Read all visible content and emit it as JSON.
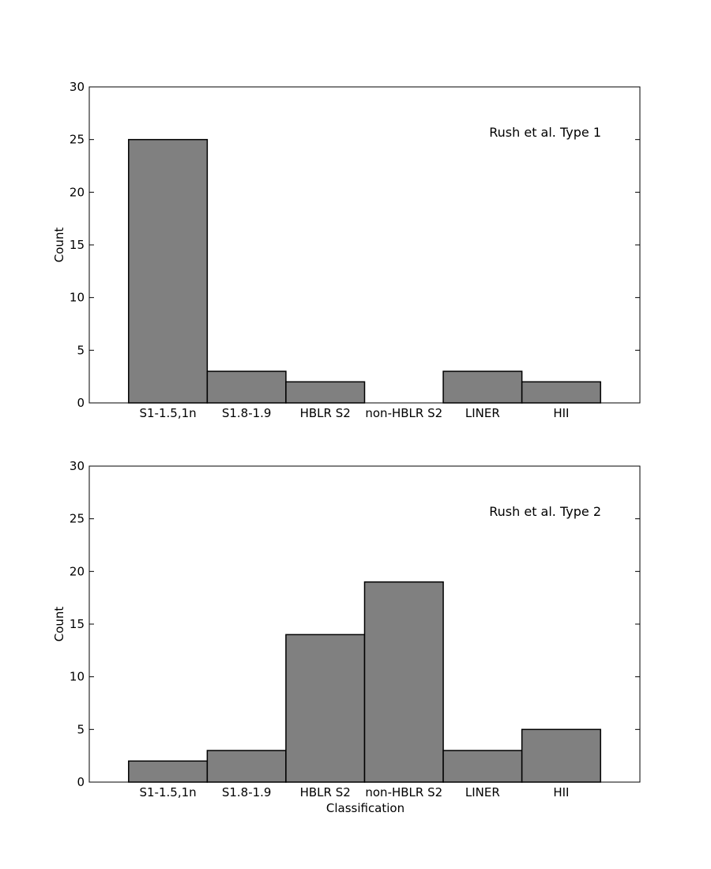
{
  "chart_data": [
    {
      "type": "bar",
      "categories": [
        "S1-1.5,1n",
        "S1.8-1.9",
        "HBLR S2",
        "non-HBLR S2",
        "LINER",
        "HII"
      ],
      "values": [
        25,
        3,
        2,
        0,
        3,
        2
      ],
      "ylabel": "Count",
      "xlabel": "",
      "ylim": [
        0,
        30
      ],
      "yticks": [
        "0",
        "5",
        "10",
        "15",
        "20",
        "25",
        "30"
      ],
      "annotation": "Rush et al. Type 1",
      "bar_color": "#808080",
      "edge_color": "#000000"
    },
    {
      "type": "bar",
      "categories": [
        "S1-1.5,1n",
        "S1.8-1.9",
        "HBLR S2",
        "non-HBLR S2",
        "LINER",
        "HII"
      ],
      "values": [
        2,
        3,
        14,
        19,
        3,
        5
      ],
      "ylabel": "Count",
      "xlabel": "Classification",
      "ylim": [
        0,
        30
      ],
      "yticks": [
        "0",
        "5",
        "10",
        "15",
        "20",
        "25",
        "30"
      ],
      "annotation": "Rush et al. Type 2",
      "bar_color": "#808080",
      "edge_color": "#000000"
    }
  ]
}
